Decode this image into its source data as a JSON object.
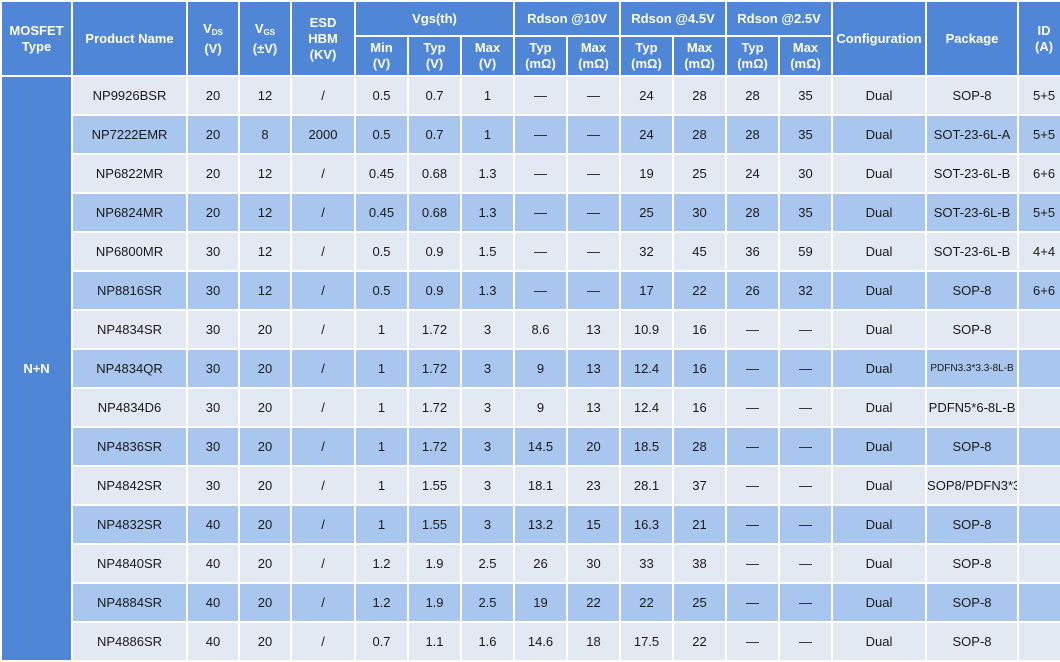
{
  "headers": {
    "mosfet_type": [
      "MOSFET",
      "Type"
    ],
    "product_name": "Product Name",
    "vds": {
      "main": "V",
      "sub": "DS",
      "unit": "(V)"
    },
    "vgs": {
      "main": "V",
      "sub": "GS",
      "unit": "(±V)"
    },
    "esd": [
      "ESD",
      "HBM",
      "(KV)"
    ],
    "vgs_th": "Vgs(th)",
    "rdson_10v": "Rdson @10V",
    "rdson_4_5v": "Rdson @4.5V",
    "rdson_2_5v": "Rdson @2.5V",
    "configuration": "Configuration",
    "package": "Package",
    "id": [
      "ID",
      "(A)"
    ],
    "sub": {
      "min_v": [
        "Min",
        "(V)"
      ],
      "typ_v": [
        "Typ",
        "(V)"
      ],
      "max_v": [
        "Max",
        "(V)"
      ],
      "typ_10": [
        "Typ",
        "(mΩ)"
      ],
      "max_10": [
        "Max",
        "(mΩ)"
      ],
      "typ_45": [
        "Typ",
        "(mΩ)"
      ],
      "max_45": [
        "Max",
        "(mΩ)"
      ],
      "typ_25": [
        "Typ",
        "(mΩ)"
      ],
      "max_25": [
        "Max",
        "(mΩ)"
      ]
    }
  },
  "mosfet_type_value": "N+N",
  "rows": [
    {
      "name": "NP9926BSR",
      "vds": "20",
      "vgs": "12",
      "esd": "/",
      "min": "0.5",
      "typ": "0.7",
      "max": "1",
      "r10typ": "—",
      "r10max": "—",
      "r45typ": "24",
      "r45max": "28",
      "r25typ": "28",
      "r25max": "35",
      "config": "Dual",
      "package": "SOP-8",
      "id": "5+5"
    },
    {
      "name": "NP7222EMR",
      "vds": "20",
      "vgs": "8",
      "esd": "2000",
      "min": "0.5",
      "typ": "0.7",
      "max": "1",
      "r10typ": "—",
      "r10max": "—",
      "r45typ": "24",
      "r45max": "28",
      "r25typ": "28",
      "r25max": "35",
      "config": "Dual",
      "package": "SOT-23-6L-A",
      "id": "5+5"
    },
    {
      "name": "NP6822MR",
      "vds": "20",
      "vgs": "12",
      "esd": "/",
      "min": "0.45",
      "typ": "0.68",
      "max": "1.3",
      "r10typ": "—",
      "r10max": "—",
      "r45typ": "19",
      "r45max": "25",
      "r25typ": "24",
      "r25max": "30",
      "config": "Dual",
      "package": "SOT-23-6L-B",
      "id": "6+6"
    },
    {
      "name": "NP6824MR",
      "vds": "20",
      "vgs": "12",
      "esd": "/",
      "min": "0.45",
      "typ": "0.68",
      "max": "1.3",
      "r10typ": "—",
      "r10max": "—",
      "r45typ": "25",
      "r45max": "30",
      "r25typ": "28",
      "r25max": "35",
      "config": "Dual",
      "package": "SOT-23-6L-B",
      "id": "5+5"
    },
    {
      "name": "NP6800MR",
      "vds": "30",
      "vgs": "12",
      "esd": "/",
      "min": "0.5",
      "typ": "0.9",
      "max": "1.5",
      "r10typ": "—",
      "r10max": "—",
      "r45typ": "32",
      "r45max": "45",
      "r25typ": "36",
      "r25max": "59",
      "config": "Dual",
      "package": "SOT-23-6L-B",
      "id": "4+4"
    },
    {
      "name": "NP8816SR",
      "vds": "30",
      "vgs": "12",
      "esd": "/",
      "min": "0.5",
      "typ": "0.9",
      "max": "1.3",
      "r10typ": "—",
      "r10max": "—",
      "r45typ": "17",
      "r45max": "22",
      "r25typ": "26",
      "r25max": "32",
      "config": "Dual",
      "package": "SOP-8",
      "id": "6+6"
    },
    {
      "name": "NP4834SR",
      "vds": "30",
      "vgs": "20",
      "esd": "/",
      "min": "1",
      "typ": "1.72",
      "max": "3",
      "r10typ": "8.6",
      "r10max": "13",
      "r45typ": "10.9",
      "r45max": "16",
      "r25typ": "—",
      "r25max": "—",
      "config": "Dual",
      "package": "SOP-8",
      "id": ""
    },
    {
      "name": "NP4834QR",
      "vds": "30",
      "vgs": "20",
      "esd": "/",
      "min": "1",
      "typ": "1.72",
      "max": "3",
      "r10typ": "9",
      "r10max": "13",
      "r45typ": "12.4",
      "r45max": "16",
      "r25typ": "—",
      "r25max": "—",
      "config": "Dual",
      "package": "PDFN3.3*3.3-8L-B",
      "id": ""
    },
    {
      "name": "NP4834D6",
      "vds": "30",
      "vgs": "20",
      "esd": "/",
      "min": "1",
      "typ": "1.72",
      "max": "3",
      "r10typ": "9",
      "r10max": "13",
      "r45typ": "12.4",
      "r45max": "16",
      "r25typ": "—",
      "r25max": "—",
      "config": "Dual",
      "package": "PDFN5*6-8L-B",
      "id": ""
    },
    {
      "name": "NP4836SR",
      "vds": "30",
      "vgs": "20",
      "esd": "/",
      "min": "1",
      "typ": "1.72",
      "max": "3",
      "r10typ": "14.5",
      "r10max": "20",
      "r45typ": "18.5",
      "r45max": "28",
      "r25typ": "—",
      "r25max": "—",
      "config": "Dual",
      "package": "SOP-8",
      "id": ""
    },
    {
      "name": "NP4842SR",
      "vds": "30",
      "vgs": "20",
      "esd": "/",
      "min": "1",
      "typ": "1.55",
      "max": "3",
      "r10typ": "18.1",
      "r10max": "23",
      "r45typ": "28.1",
      "r45max": "37",
      "r25typ": "—",
      "r25max": "—",
      "config": "Dual",
      "package": "SOP8/PDFN3*3",
      "id": ""
    },
    {
      "name": "NP4832SR",
      "vds": "40",
      "vgs": "20",
      "esd": "/",
      "min": "1",
      "typ": "1.55",
      "max": "3",
      "r10typ": "13.2",
      "r10max": "15",
      "r45typ": "16.3",
      "r45max": "21",
      "r25typ": "—",
      "r25max": "—",
      "config": "Dual",
      "package": "SOP-8",
      "id": ""
    },
    {
      "name": "NP4840SR",
      "vds": "40",
      "vgs": "20",
      "esd": "/",
      "min": "1.2",
      "typ": "1.9",
      "max": "2.5",
      "r10typ": "26",
      "r10max": "30",
      "r45typ": "33",
      "r45max": "38",
      "r25typ": "—",
      "r25max": "—",
      "config": "Dual",
      "package": "SOP-8",
      "id": ""
    },
    {
      "name": "NP4884SR",
      "vds": "40",
      "vgs": "20",
      "esd": "/",
      "min": "1.2",
      "typ": "1.9",
      "max": "2.5",
      "r10typ": "19",
      "r10max": "22",
      "r45typ": "22",
      "r45max": "25",
      "r25typ": "—",
      "r25max": "—",
      "config": "Dual",
      "package": "SOP-8",
      "id": ""
    },
    {
      "name": "NP4886SR",
      "vds": "40",
      "vgs": "20",
      "esd": "/",
      "min": "0.7",
      "typ": "1.1",
      "max": "1.6",
      "r10typ": "14.6",
      "r10max": "18",
      "r45typ": "17.5",
      "r45max": "22",
      "r25typ": "—",
      "r25max": "—",
      "config": "Dual",
      "package": "SOP-8",
      "id": ""
    }
  ]
}
